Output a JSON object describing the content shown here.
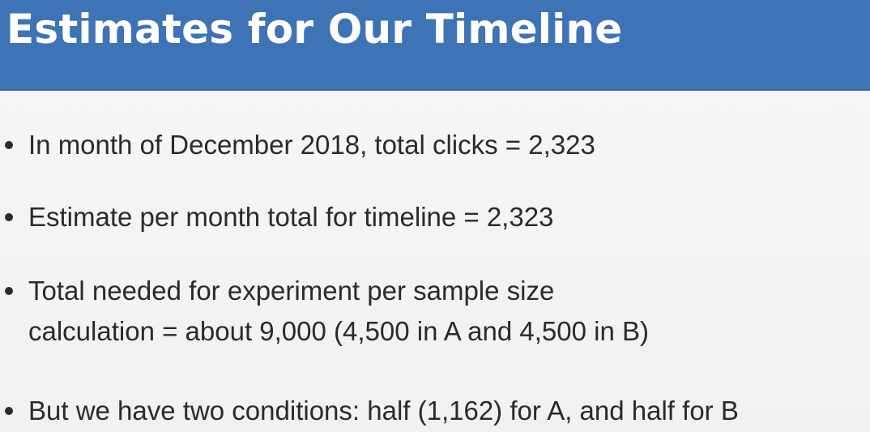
{
  "slide": {
    "title": "Estimates for Our Timeline",
    "bullets": [
      {
        "lines": [
          "In month of December 2018, total clicks = 2,323"
        ]
      },
      {
        "lines": [
          "Estimate per month total for timeline = 2,323"
        ]
      },
      {
        "lines": [
          "Total needed for experiment per sample size",
          "calculation = about 9,000 (4,500 in A and 4,500 in B)"
        ]
      },
      {
        "lines": [
          "But we have two conditions: half (1,162) for A, and half for B"
        ]
      }
    ]
  },
  "colors": {
    "title_bar": "#3e74b6",
    "title_text": "#ffffff",
    "body_text": "#2a2a2a",
    "background": "#f4f4f4"
  }
}
